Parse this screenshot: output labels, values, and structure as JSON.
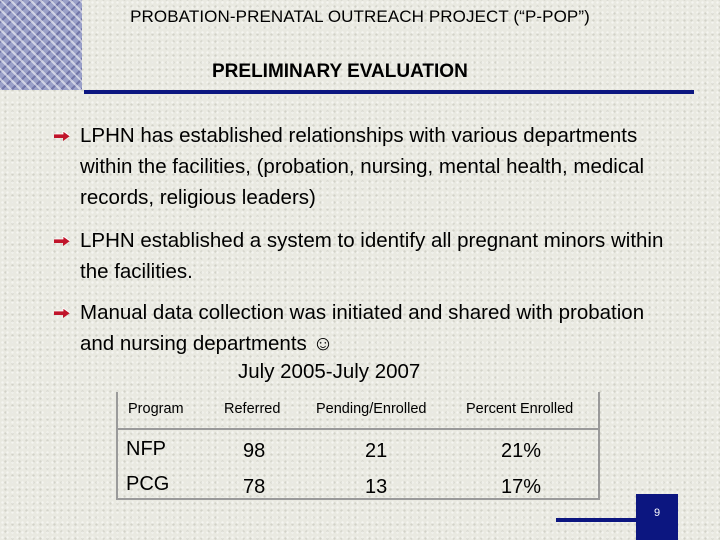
{
  "slide": {
    "title": "PROBATION-PRENATAL OUTREACH PROJECT (“P-POP”)",
    "subtitle": "PRELIMINARY EVALUATION",
    "bullets": [
      "LPHN has established relationships with various departments within the facilities, (probation, nursing, mental health, medical records, religious leaders)",
      "LPHN established a system to identify all pregnant minors within the facilities.",
      "Manual data collection was initiated and shared with probation and nursing departments ☺"
    ],
    "period": "July 2005-July 2007",
    "page_number": "9"
  },
  "table": {
    "headers": [
      "Program",
      "Referred",
      "Pending/Enrolled",
      "Percent Enrolled"
    ],
    "rows": [
      [
        "NFP",
        "98",
        "21",
        "21%"
      ],
      [
        "PCG",
        "78",
        "13",
        "17%"
      ]
    ]
  },
  "colors": {
    "accent": "#0c1680",
    "bullet_arrow": "#c0142a",
    "background": "#e9e9e1"
  },
  "icons": {
    "bullet": "right-arrow-icon",
    "decoration": "crosshatch-pattern"
  }
}
